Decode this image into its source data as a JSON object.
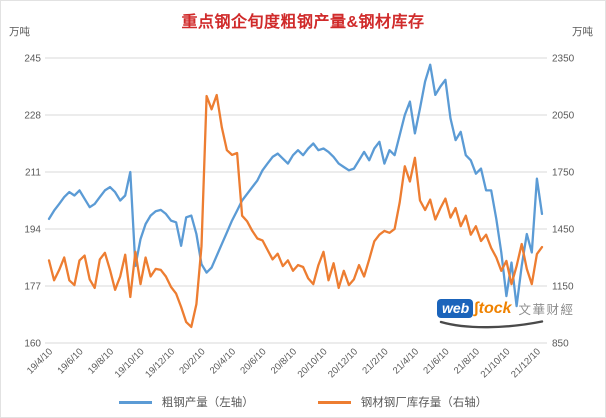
{
  "title": {
    "text": "重点钢企旬度粗钢产量&钢材库存",
    "color": "#d02b2b"
  },
  "axis_units": {
    "left": "万吨",
    "right": "万吨"
  },
  "legend": {
    "items": [
      {
        "label": "粗钢产量（左轴）",
        "color": "#5B9BD5"
      },
      {
        "label": "钢材钢厂库存量（右轴）",
        "color": "#ED7D31"
      }
    ]
  },
  "watermark": {
    "logo_web": "web",
    "logo_stock": "∫tock",
    "brand": "文華财經",
    "web_bg": "#1b64bb",
    "stock_color": "#ef8200",
    "brand_color": "#8c8c8c",
    "swoosh_color": "#4a4a4a"
  },
  "chart_data": {
    "type": "line",
    "title": "重点钢企旬度粗钢产量&钢材库存",
    "grid": true,
    "legend_position": "bottom",
    "background": "#ffffff",
    "gridline_color": "#d9d9d9",
    "tick_text_color": "#595959",
    "x_tick_labels": [
      "19/4/10",
      "19/6/10",
      "19/8/10",
      "19/10/10",
      "19/12/10",
      "20/2/10",
      "20/4/10",
      "20/6/10",
      "20/8/10",
      "20/10/10",
      "20/12/10",
      "21/2/10",
      "21/4/10",
      "21/6/10",
      "21/8/10",
      "21/10/10",
      "21/12/10"
    ],
    "points_per_tick": 6,
    "left_axis": {
      "unit": "万吨",
      "ticks": [
        245,
        228,
        211,
        194,
        177,
        160
      ],
      "range": [
        160,
        245
      ]
    },
    "right_axis": {
      "unit": "万吨",
      "ticks": [
        2350,
        2050,
        1750,
        1450,
        1150,
        850
      ],
      "range": [
        850,
        2350
      ]
    },
    "series": [
      {
        "name": "粗钢产量（左轴）",
        "axis": "left",
        "color": "#5B9BD5",
        "values": [
          197,
          199.5,
          201.5,
          203.5,
          205,
          204,
          205.5,
          203,
          200.5,
          201.5,
          203.5,
          205.5,
          206.5,
          205,
          202.5,
          204,
          211,
          183,
          191,
          195.5,
          198,
          199.3,
          199.7,
          198.5,
          196.5,
          196,
          189,
          197.5,
          198,
          192.5,
          183.5,
          181,
          182.5,
          186,
          189.5,
          193,
          196.5,
          199.5,
          202.5,
          204.5,
          206.5,
          208.5,
          211.5,
          213.5,
          215.5,
          216.5,
          215,
          213.5,
          216,
          217.5,
          216,
          218,
          219.5,
          217.5,
          218,
          217,
          215.5,
          213.5,
          212.5,
          211.5,
          212,
          214.5,
          217,
          214.5,
          218,
          220,
          213.5,
          217.5,
          216,
          222,
          228,
          232,
          222.5,
          230,
          238,
          243,
          234,
          236.5,
          238.5,
          227,
          220.5,
          223,
          216,
          214.5,
          210.5,
          212,
          205.5,
          205.5,
          197,
          187,
          174,
          184,
          171,
          183,
          192.5,
          187,
          209,
          198.5
        ]
      },
      {
        "name": "钢材钢厂库存量（右轴）",
        "axis": "right",
        "color": "#ED7D31",
        "values": [
          1285,
          1180,
          1235,
          1300,
          1180,
          1155,
          1285,
          1310,
          1185,
          1140,
          1290,
          1325,
          1235,
          1130,
          1200,
          1315,
          1092,
          1330,
          1160,
          1300,
          1200,
          1240,
          1235,
          1200,
          1145,
          1110,
          1040,
          960,
          935,
          1055,
          1360,
          2150,
          2080,
          2155,
          1985,
          1865,
          1840,
          1850,
          1520,
          1490,
          1440,
          1400,
          1390,
          1340,
          1290,
          1320,
          1255,
          1285,
          1230,
          1260,
          1250,
          1190,
          1160,
          1260,
          1330,
          1180,
          1270,
          1140,
          1230,
          1155,
          1185,
          1260,
          1200,
          1290,
          1385,
          1420,
          1440,
          1430,
          1450,
          1590,
          1780,
          1700,
          1825,
          1600,
          1550,
          1605,
          1500,
          1560,
          1610,
          1510,
          1560,
          1465,
          1520,
          1420,
          1465,
          1387,
          1420,
          1350,
          1300,
          1230,
          1282,
          1160,
          1255,
          1371,
          1240,
          1160,
          1318,
          1355
        ]
      }
    ]
  }
}
